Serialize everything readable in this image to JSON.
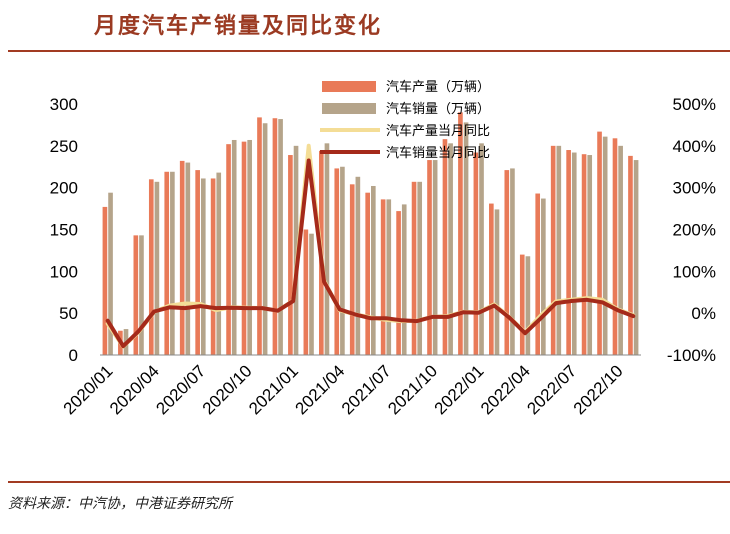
{
  "header": {
    "title": "月度汽车产销量及同比变化"
  },
  "footer": {
    "source": "资料来源：中汽协，中港证券研究所"
  },
  "colors": {
    "accent": "#a23b22",
    "production_bar": "#e97a58",
    "sales_bar": "#b5a48a",
    "production_yoy": "#f4dd96",
    "sales_yoy": "#a52a1a"
  },
  "chart_data": {
    "type": "bar",
    "categories": [
      "2020/01",
      "2020/02",
      "2020/03",
      "2020/04",
      "2020/05",
      "2020/06",
      "2020/07",
      "2020/08",
      "2020/09",
      "2020/10",
      "2020/11",
      "2020/12",
      "2021/01",
      "2021/02",
      "2021/03",
      "2021/04",
      "2021/05",
      "2021/06",
      "2021/07",
      "2021/08",
      "2021/09",
      "2021/10",
      "2021/11",
      "2021/12",
      "2022/01",
      "2022/02",
      "2022/03",
      "2022/04",
      "2022/05",
      "2022/06",
      "2022/07",
      "2022/08",
      "2022/09",
      "2022/10",
      "2022/11"
    ],
    "x_tick_labels": [
      "2020/01",
      "2020/04",
      "2020/07",
      "2020/10",
      "2021/01",
      "2021/04",
      "2021/07",
      "2021/10",
      "2022/01",
      "2022/04",
      "2022/07",
      "2022/10"
    ],
    "y_left": {
      "ticks": [
        "0",
        "50",
        "100",
        "150",
        "200",
        "250",
        "300"
      ],
      "ylim": [
        0,
        300
      ]
    },
    "y_right": {
      "ticks": [
        "-100%",
        "0%",
        "100%",
        "200%",
        "300%",
        "400%",
        "500%"
      ],
      "ylim": [
        -100,
        500
      ]
    },
    "legend": [
      "汽车产量（万辆）",
      "汽车销量（万辆）",
      "汽车产量当月同比",
      "汽车销量当月同比"
    ],
    "series": [
      {
        "name": "汽车产量（万辆）",
        "axis": "left",
        "kind": "bar",
        "values": [
          177,
          29,
          143,
          210,
          219,
          232,
          221,
          211,
          252,
          255,
          284,
          283,
          239,
          150,
          244,
          223,
          204,
          194,
          186,
          172,
          207,
          233,
          258,
          290,
          242,
          181,
          221,
          120,
          193,
          250,
          245,
          240,
          267,
          259,
          238
        ]
      },
      {
        "name": "汽车销量（万辆）",
        "axis": "left",
        "kind": "bar",
        "values": [
          194,
          31,
          143,
          207,
          219,
          230,
          211,
          218,
          257,
          257,
          277,
          282,
          250,
          145,
          253,
          225,
          213,
          202,
          186,
          180,
          207,
          233,
          253,
          278,
          253,
          174,
          223,
          118,
          187,
          250,
          242,
          239,
          261,
          250,
          233
        ]
      },
      {
        "name": "汽车产量当月同比",
        "axis": "right",
        "kind": "line",
        "values": [
          -25,
          -80,
          -45,
          3,
          18,
          23,
          22,
          7,
          14,
          13,
          12,
          6,
          30,
          400,
          78,
          7,
          -3,
          -10,
          -16,
          -19,
          -18,
          -9,
          -7,
          3,
          2,
          21,
          -10,
          -46,
          -6,
          28,
          32,
          36,
          32,
          9,
          -5
        ]
      },
      {
        "name": "汽车销量当月同比",
        "axis": "right",
        "kind": "line",
        "values": [
          -18,
          -79,
          -43,
          4,
          14,
          12,
          17,
          12,
          13,
          12,
          12,
          6,
          29,
          365,
          75,
          9,
          -3,
          -12,
          -12,
          -17,
          -19,
          -9,
          -9,
          2,
          1,
          18,
          -11,
          -48,
          -13,
          24,
          29,
          32,
          26,
          7,
          -7
        ]
      }
    ]
  }
}
